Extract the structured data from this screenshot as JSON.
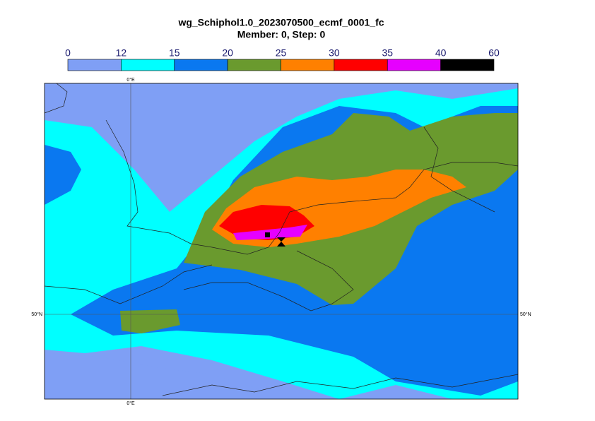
{
  "header": {
    "title": "wg_Schiphol1.0_2023070500_ecmf_0001_fc",
    "subtitle": "Member: 0, Step: 0"
  },
  "colorbar": {
    "bounds": [
      0,
      12,
      15,
      20,
      25,
      30,
      35,
      40,
      60
    ],
    "colors": [
      "#7f9ff5",
      "#00ffff",
      "#0a78f0",
      "#6a9a2e",
      "#ff8000",
      "#ff0000",
      "#e600ff",
      "#000000"
    ]
  },
  "map": {
    "meridian_label": "0°E",
    "parallel_label": "50°N"
  }
}
